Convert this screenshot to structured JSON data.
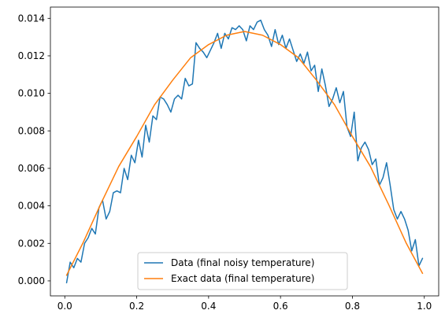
{
  "chart_data": {
    "type": "line",
    "title": "",
    "xlabel": "",
    "ylabel": "",
    "xlim": [
      -0.04,
      1.04
    ],
    "ylim": [
      -0.0008,
      0.0146
    ],
    "x_ticks": [
      0.0,
      0.2,
      0.4,
      0.6,
      0.8,
      1.0
    ],
    "x_tick_labels": [
      "0.0",
      "0.2",
      "0.4",
      "0.6",
      "0.8",
      "1.0"
    ],
    "y_ticks": [
      0.0,
      0.002,
      0.004,
      0.006,
      0.008,
      0.01,
      0.012,
      0.014
    ],
    "y_tick_labels": [
      "0.000",
      "0.002",
      "0.004",
      "0.006",
      "0.008",
      "0.010",
      "0.012",
      "0.014"
    ],
    "grid": false,
    "legend_position": "lower center",
    "series": [
      {
        "name": "Data (final noisy temperature)",
        "color": "#1f77b4",
        "x": [
          0.005,
          0.015,
          0.025,
          0.035,
          0.045,
          0.055,
          0.065,
          0.075,
          0.085,
          0.095,
          0.105,
          0.115,
          0.125,
          0.135,
          0.145,
          0.155,
          0.165,
          0.175,
          0.185,
          0.195,
          0.205,
          0.215,
          0.225,
          0.235,
          0.245,
          0.255,
          0.265,
          0.275,
          0.285,
          0.295,
          0.305,
          0.315,
          0.325,
          0.335,
          0.345,
          0.355,
          0.365,
          0.375,
          0.385,
          0.395,
          0.405,
          0.415,
          0.425,
          0.435,
          0.445,
          0.455,
          0.465,
          0.475,
          0.485,
          0.495,
          0.505,
          0.515,
          0.525,
          0.535,
          0.545,
          0.555,
          0.565,
          0.575,
          0.585,
          0.595,
          0.605,
          0.615,
          0.625,
          0.635,
          0.645,
          0.655,
          0.665,
          0.675,
          0.685,
          0.695,
          0.705,
          0.715,
          0.725,
          0.735,
          0.745,
          0.755,
          0.765,
          0.775,
          0.785,
          0.795,
          0.805,
          0.815,
          0.825,
          0.835,
          0.845,
          0.855,
          0.865,
          0.875,
          0.885,
          0.895,
          0.905,
          0.915,
          0.925,
          0.935,
          0.945,
          0.955,
          0.965,
          0.975,
          0.985,
          0.995
        ],
        "values": [
          -0.0001,
          0.001,
          0.0007,
          0.0012,
          0.001,
          0.002,
          0.0023,
          0.0028,
          0.0025,
          0.0039,
          0.0043,
          0.0033,
          0.0037,
          0.0047,
          0.0048,
          0.0047,
          0.006,
          0.0054,
          0.0067,
          0.0063,
          0.0075,
          0.0066,
          0.0083,
          0.0074,
          0.0088,
          0.0086,
          0.0098,
          0.0097,
          0.0094,
          0.009,
          0.0097,
          0.0099,
          0.0097,
          0.0108,
          0.0104,
          0.0105,
          0.0127,
          0.0124,
          0.0122,
          0.0119,
          0.0123,
          0.0127,
          0.0132,
          0.0124,
          0.0132,
          0.0129,
          0.0135,
          0.0134,
          0.0136,
          0.0134,
          0.0128,
          0.0136,
          0.0134,
          0.0138,
          0.0139,
          0.0134,
          0.0131,
          0.0125,
          0.0134,
          0.0126,
          0.0131,
          0.0124,
          0.0129,
          0.0123,
          0.0117,
          0.0121,
          0.0116,
          0.0122,
          0.0112,
          0.0115,
          0.0101,
          0.0113,
          0.0104,
          0.0093,
          0.0097,
          0.0103,
          0.0095,
          0.0101,
          0.0082,
          0.0077,
          0.009,
          0.0064,
          0.0071,
          0.0074,
          0.007,
          0.0062,
          0.0065,
          0.0051,
          0.0055,
          0.0063,
          0.0051,
          0.0038,
          0.0033,
          0.0037,
          0.0033,
          0.0027,
          0.0016,
          0.0022,
          0.0008,
          0.0012
        ]
      },
      {
        "name": "Exact data (final temperature)",
        "color": "#ff7f0e",
        "x": [
          0.005,
          0.05,
          0.1,
          0.15,
          0.2,
          0.25,
          0.3,
          0.35,
          0.4,
          0.45,
          0.5,
          0.55,
          0.6,
          0.65,
          0.7,
          0.75,
          0.8,
          0.85,
          0.9,
          0.95,
          0.995
        ],
        "values": [
          0.0003,
          0.002,
          0.0041,
          0.0061,
          0.0077,
          0.0094,
          0.0107,
          0.0119,
          0.0126,
          0.0131,
          0.0133,
          0.0131,
          0.0126,
          0.0119,
          0.0107,
          0.0094,
          0.0077,
          0.0061,
          0.0041,
          0.002,
          0.0004
        ]
      }
    ]
  }
}
